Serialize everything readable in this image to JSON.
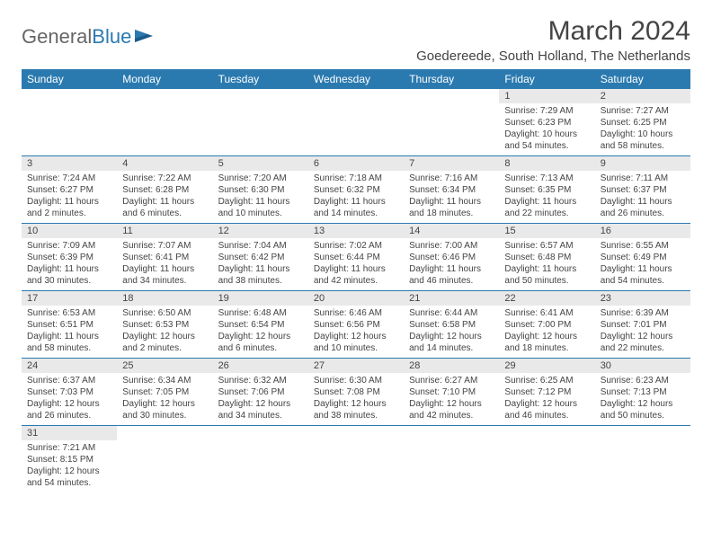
{
  "logo": {
    "text1": "General",
    "text2": "Blue"
  },
  "title": "March 2024",
  "location": "Goedereede, South Holland, The Netherlands",
  "colors": {
    "header_bg": "#2a7ab0",
    "header_text": "#ffffff",
    "daynum_bg": "#e9e9e9",
    "border": "#2a7ab0",
    "text": "#444444"
  },
  "weekdays": [
    "Sunday",
    "Monday",
    "Tuesday",
    "Wednesday",
    "Thursday",
    "Friday",
    "Saturday"
  ],
  "weeks": [
    [
      null,
      null,
      null,
      null,
      null,
      {
        "n": "1",
        "sr": "Sunrise: 7:29 AM",
        "ss": "Sunset: 6:23 PM",
        "dl": "Daylight: 10 hours and 54 minutes."
      },
      {
        "n": "2",
        "sr": "Sunrise: 7:27 AM",
        "ss": "Sunset: 6:25 PM",
        "dl": "Daylight: 10 hours and 58 minutes."
      }
    ],
    [
      {
        "n": "3",
        "sr": "Sunrise: 7:24 AM",
        "ss": "Sunset: 6:27 PM",
        "dl": "Daylight: 11 hours and 2 minutes."
      },
      {
        "n": "4",
        "sr": "Sunrise: 7:22 AM",
        "ss": "Sunset: 6:28 PM",
        "dl": "Daylight: 11 hours and 6 minutes."
      },
      {
        "n": "5",
        "sr": "Sunrise: 7:20 AM",
        "ss": "Sunset: 6:30 PM",
        "dl": "Daylight: 11 hours and 10 minutes."
      },
      {
        "n": "6",
        "sr": "Sunrise: 7:18 AM",
        "ss": "Sunset: 6:32 PM",
        "dl": "Daylight: 11 hours and 14 minutes."
      },
      {
        "n": "7",
        "sr": "Sunrise: 7:16 AM",
        "ss": "Sunset: 6:34 PM",
        "dl": "Daylight: 11 hours and 18 minutes."
      },
      {
        "n": "8",
        "sr": "Sunrise: 7:13 AM",
        "ss": "Sunset: 6:35 PM",
        "dl": "Daylight: 11 hours and 22 minutes."
      },
      {
        "n": "9",
        "sr": "Sunrise: 7:11 AM",
        "ss": "Sunset: 6:37 PM",
        "dl": "Daylight: 11 hours and 26 minutes."
      }
    ],
    [
      {
        "n": "10",
        "sr": "Sunrise: 7:09 AM",
        "ss": "Sunset: 6:39 PM",
        "dl": "Daylight: 11 hours and 30 minutes."
      },
      {
        "n": "11",
        "sr": "Sunrise: 7:07 AM",
        "ss": "Sunset: 6:41 PM",
        "dl": "Daylight: 11 hours and 34 minutes."
      },
      {
        "n": "12",
        "sr": "Sunrise: 7:04 AM",
        "ss": "Sunset: 6:42 PM",
        "dl": "Daylight: 11 hours and 38 minutes."
      },
      {
        "n": "13",
        "sr": "Sunrise: 7:02 AM",
        "ss": "Sunset: 6:44 PM",
        "dl": "Daylight: 11 hours and 42 minutes."
      },
      {
        "n": "14",
        "sr": "Sunrise: 7:00 AM",
        "ss": "Sunset: 6:46 PM",
        "dl": "Daylight: 11 hours and 46 minutes."
      },
      {
        "n": "15",
        "sr": "Sunrise: 6:57 AM",
        "ss": "Sunset: 6:48 PM",
        "dl": "Daylight: 11 hours and 50 minutes."
      },
      {
        "n": "16",
        "sr": "Sunrise: 6:55 AM",
        "ss": "Sunset: 6:49 PM",
        "dl": "Daylight: 11 hours and 54 minutes."
      }
    ],
    [
      {
        "n": "17",
        "sr": "Sunrise: 6:53 AM",
        "ss": "Sunset: 6:51 PM",
        "dl": "Daylight: 11 hours and 58 minutes."
      },
      {
        "n": "18",
        "sr": "Sunrise: 6:50 AM",
        "ss": "Sunset: 6:53 PM",
        "dl": "Daylight: 12 hours and 2 minutes."
      },
      {
        "n": "19",
        "sr": "Sunrise: 6:48 AM",
        "ss": "Sunset: 6:54 PM",
        "dl": "Daylight: 12 hours and 6 minutes."
      },
      {
        "n": "20",
        "sr": "Sunrise: 6:46 AM",
        "ss": "Sunset: 6:56 PM",
        "dl": "Daylight: 12 hours and 10 minutes."
      },
      {
        "n": "21",
        "sr": "Sunrise: 6:44 AM",
        "ss": "Sunset: 6:58 PM",
        "dl": "Daylight: 12 hours and 14 minutes."
      },
      {
        "n": "22",
        "sr": "Sunrise: 6:41 AM",
        "ss": "Sunset: 7:00 PM",
        "dl": "Daylight: 12 hours and 18 minutes."
      },
      {
        "n": "23",
        "sr": "Sunrise: 6:39 AM",
        "ss": "Sunset: 7:01 PM",
        "dl": "Daylight: 12 hours and 22 minutes."
      }
    ],
    [
      {
        "n": "24",
        "sr": "Sunrise: 6:37 AM",
        "ss": "Sunset: 7:03 PM",
        "dl": "Daylight: 12 hours and 26 minutes."
      },
      {
        "n": "25",
        "sr": "Sunrise: 6:34 AM",
        "ss": "Sunset: 7:05 PM",
        "dl": "Daylight: 12 hours and 30 minutes."
      },
      {
        "n": "26",
        "sr": "Sunrise: 6:32 AM",
        "ss": "Sunset: 7:06 PM",
        "dl": "Daylight: 12 hours and 34 minutes."
      },
      {
        "n": "27",
        "sr": "Sunrise: 6:30 AM",
        "ss": "Sunset: 7:08 PM",
        "dl": "Daylight: 12 hours and 38 minutes."
      },
      {
        "n": "28",
        "sr": "Sunrise: 6:27 AM",
        "ss": "Sunset: 7:10 PM",
        "dl": "Daylight: 12 hours and 42 minutes."
      },
      {
        "n": "29",
        "sr": "Sunrise: 6:25 AM",
        "ss": "Sunset: 7:12 PM",
        "dl": "Daylight: 12 hours and 46 minutes."
      },
      {
        "n": "30",
        "sr": "Sunrise: 6:23 AM",
        "ss": "Sunset: 7:13 PM",
        "dl": "Daylight: 12 hours and 50 minutes."
      }
    ],
    [
      {
        "n": "31",
        "sr": "Sunrise: 7:21 AM",
        "ss": "Sunset: 8:15 PM",
        "dl": "Daylight: 12 hours and 54 minutes."
      },
      null,
      null,
      null,
      null,
      null,
      null
    ]
  ]
}
